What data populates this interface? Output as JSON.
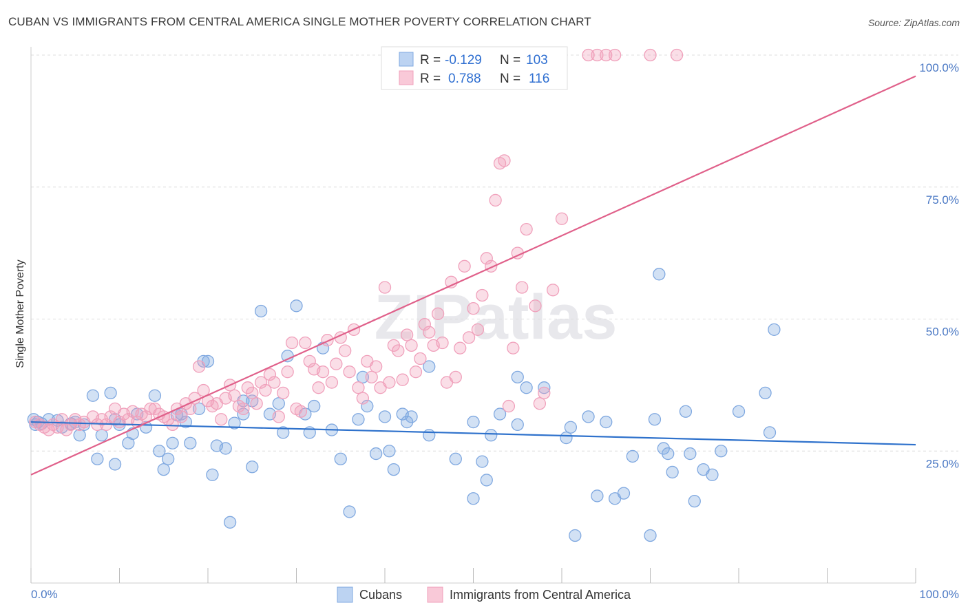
{
  "header": {
    "title": "CUBAN VS IMMIGRANTS FROM CENTRAL AMERICA SINGLE MOTHER POVERTY CORRELATION CHART",
    "source": "Source: ZipAtlas.com"
  },
  "watermark": "ZIPatlas",
  "legend": {
    "r_label": "R =",
    "n_label": "N =",
    "rows": [
      {
        "r": "-0.129",
        "n": "103"
      },
      {
        "r": "0.788",
        "n": "116"
      }
    ]
  },
  "chart_data": {
    "type": "scatter",
    "title": "CUBAN VS IMMIGRANTS FROM CENTRAL AMERICA SINGLE MOTHER POVERTY CORRELATION CHART",
    "xlabel": "",
    "ylabel": "Single Mother Poverty",
    "xlim": [
      0,
      100
    ],
    "ylim": [
      0,
      100
    ],
    "x_tick_labels": [
      "0.0%",
      "100.0%"
    ],
    "y_tick_labels": [
      "25.0%",
      "50.0%",
      "75.0%",
      "100.0%"
    ],
    "y_ticks": [
      25,
      50,
      75,
      100
    ],
    "grid": true,
    "legend_position": "top-center",
    "colors": {
      "cubans": "#7fa8e0",
      "cubans_line": "#2f72cc",
      "immigrants": "#f0a0bb",
      "immigrants_line": "#e0608a"
    },
    "series": [
      {
        "name": "Cubans",
        "r": -0.129,
        "n": 103,
        "trend": [
          [
            0,
            30.5
          ],
          [
            100,
            26.2
          ]
        ],
        "points": [
          [
            0.3,
            31
          ],
          [
            0.5,
            30
          ],
          [
            0.8,
            30.5
          ],
          [
            1.2,
            30.2
          ],
          [
            2,
            31
          ],
          [
            3,
            30.8
          ],
          [
            3.5,
            29.5
          ],
          [
            4.5,
            30.2
          ],
          [
            5,
            30.5
          ],
          [
            5.5,
            28
          ],
          [
            6,
            30
          ],
          [
            7,
            35.5
          ],
          [
            7.5,
            23.5
          ],
          [
            8,
            28
          ],
          [
            9,
            36
          ],
          [
            9.5,
            22.5
          ],
          [
            9.5,
            31
          ],
          [
            10,
            30
          ],
          [
            11,
            26.5
          ],
          [
            11.5,
            28.3
          ],
          [
            12,
            32
          ],
          [
            13,
            29.5
          ],
          [
            14,
            35.5
          ],
          [
            14.5,
            25
          ],
          [
            15,
            21.5
          ],
          [
            15.5,
            23.5
          ],
          [
            16,
            26.5
          ],
          [
            16.5,
            31.8
          ],
          [
            17,
            32
          ],
          [
            17.5,
            30.5
          ],
          [
            18,
            26.5
          ],
          [
            19,
            33
          ],
          [
            19.5,
            42
          ],
          [
            20,
            42
          ],
          [
            20.5,
            20.5
          ],
          [
            21,
            26
          ],
          [
            22,
            25.5
          ],
          [
            22.5,
            11.5
          ],
          [
            23,
            30.3
          ],
          [
            24,
            34.5
          ],
          [
            24,
            32
          ],
          [
            25,
            34.5
          ],
          [
            25,
            22
          ],
          [
            26,
            51.5
          ],
          [
            27,
            32
          ],
          [
            28,
            34
          ],
          [
            28.5,
            28.5
          ],
          [
            29,
            43
          ],
          [
            30,
            52.5
          ],
          [
            31,
            32
          ],
          [
            31.5,
            28.5
          ],
          [
            32,
            33.5
          ],
          [
            33,
            44.5
          ],
          [
            34,
            29
          ],
          [
            35,
            23.5
          ],
          [
            36,
            13.5
          ],
          [
            37,
            31
          ],
          [
            37.5,
            39
          ],
          [
            38,
            33.5
          ],
          [
            39,
            24.5
          ],
          [
            40,
            31.5
          ],
          [
            40.5,
            25
          ],
          [
            41,
            21.5
          ],
          [
            42,
            32
          ],
          [
            42.5,
            30.5
          ],
          [
            43,
            31.5
          ],
          [
            45,
            41
          ],
          [
            45,
            28
          ],
          [
            48,
            23.5
          ],
          [
            50,
            16
          ],
          [
            50,
            30.5
          ],
          [
            51,
            23
          ],
          [
            51.5,
            19.5
          ],
          [
            52,
            28
          ],
          [
            53,
            32
          ],
          [
            55,
            30
          ],
          [
            55,
            39
          ],
          [
            56,
            37
          ],
          [
            58,
            37
          ],
          [
            60.5,
            27.5
          ],
          [
            61,
            29.5
          ],
          [
            61.5,
            9
          ],
          [
            63,
            31.5
          ],
          [
            64,
            16.5
          ],
          [
            65,
            30.5
          ],
          [
            66,
            16
          ],
          [
            67,
            17
          ],
          [
            68,
            24
          ],
          [
            70,
            9
          ],
          [
            70.5,
            31
          ],
          [
            71,
            58.5
          ],
          [
            71.5,
            25.5
          ],
          [
            72,
            24.5
          ],
          [
            72.5,
            21
          ],
          [
            74,
            32.5
          ],
          [
            74.5,
            24.5
          ],
          [
            75,
            15.5
          ],
          [
            76,
            21.5
          ],
          [
            77,
            20.5
          ],
          [
            78,
            25
          ],
          [
            80,
            32.5
          ],
          [
            83,
            36
          ],
          [
            83.5,
            28.5
          ],
          [
            84,
            48
          ]
        ]
      },
      {
        "name": "Immigrants from Central America",
        "r": 0.788,
        "n": 116,
        "trend": [
          [
            0,
            20.5
          ],
          [
            100,
            96
          ]
        ],
        "points": [
          [
            0.5,
            30.5
          ],
          [
            1,
            30
          ],
          [
            1.5,
            29.5
          ],
          [
            2,
            29
          ],
          [
            2.5,
            30
          ],
          [
            3,
            29.5
          ],
          [
            3.5,
            31
          ],
          [
            4,
            29
          ],
          [
            4.5,
            30
          ],
          [
            5,
            31
          ],
          [
            5.5,
            30
          ],
          [
            6,
            30.5
          ],
          [
            7,
            31.5
          ],
          [
            7.5,
            30
          ],
          [
            8,
            31
          ],
          [
            8.5,
            30
          ],
          [
            9,
            31.5
          ],
          [
            9.5,
            33
          ],
          [
            10,
            30.5
          ],
          [
            10.5,
            32
          ],
          [
            11,
            31
          ],
          [
            11.5,
            32.5
          ],
          [
            12,
            30.5
          ],
          [
            12.5,
            32
          ],
          [
            13,
            31.5
          ],
          [
            13.5,
            33
          ],
          [
            14,
            33
          ],
          [
            14.5,
            32
          ],
          [
            15,
            31.5
          ],
          [
            15.5,
            31
          ],
          [
            16,
            30
          ],
          [
            16.5,
            33
          ],
          [
            17,
            31.5
          ],
          [
            17.5,
            34
          ],
          [
            18,
            33
          ],
          [
            18.5,
            35
          ],
          [
            19,
            41
          ],
          [
            19.5,
            36.5
          ],
          [
            20,
            34.5
          ],
          [
            20.5,
            33.5
          ],
          [
            21,
            34
          ],
          [
            21.5,
            31
          ],
          [
            22,
            35
          ],
          [
            22.5,
            37.5
          ],
          [
            23,
            35.5
          ],
          [
            23.5,
            33.5
          ],
          [
            24,
            33
          ],
          [
            24.5,
            37
          ],
          [
            25,
            36
          ],
          [
            25.5,
            34
          ],
          [
            26,
            38
          ],
          [
            26.5,
            36.5
          ],
          [
            27,
            39.5
          ],
          [
            27.5,
            38
          ],
          [
            28,
            31.5
          ],
          [
            28.5,
            36
          ],
          [
            29,
            40
          ],
          [
            29.5,
            45.5
          ],
          [
            30,
            33
          ],
          [
            30.5,
            32.5
          ],
          [
            31,
            45.5
          ],
          [
            31.5,
            42
          ],
          [
            32,
            40.5
          ],
          [
            32.5,
            37
          ],
          [
            33,
            40
          ],
          [
            33.5,
            46
          ],
          [
            34,
            38
          ],
          [
            34.5,
            41.5
          ],
          [
            35,
            46.5
          ],
          [
            35.5,
            44
          ],
          [
            36,
            40
          ],
          [
            36.5,
            48
          ],
          [
            37,
            37
          ],
          [
            37.5,
            35
          ],
          [
            38,
            42
          ],
          [
            38.5,
            39
          ],
          [
            39,
            41
          ],
          [
            39.5,
            37
          ],
          [
            40,
            56
          ],
          [
            40.5,
            38
          ],
          [
            41,
            45
          ],
          [
            41.5,
            44
          ],
          [
            42,
            38.5
          ],
          [
            42.5,
            47
          ],
          [
            43,
            45
          ],
          [
            43.5,
            40
          ],
          [
            44,
            42.5
          ],
          [
            44.5,
            49
          ],
          [
            45,
            47.5
          ],
          [
            45.5,
            45
          ],
          [
            46,
            51
          ],
          [
            46.5,
            45.5
          ],
          [
            47,
            38
          ],
          [
            47.5,
            57
          ],
          [
            48,
            39
          ],
          [
            48.5,
            44.5
          ],
          [
            49,
            60
          ],
          [
            49.5,
            46.5
          ],
          [
            50,
            52
          ],
          [
            50.5,
            48
          ],
          [
            51,
            54.5
          ],
          [
            51.5,
            61.5
          ],
          [
            52,
            60
          ],
          [
            52.5,
            72.5
          ],
          [
            53,
            79.5
          ],
          [
            53.5,
            80
          ],
          [
            54,
            33.5
          ],
          [
            54.5,
            44.5
          ],
          [
            55,
            62.5
          ],
          [
            55.5,
            56
          ],
          [
            56,
            67
          ],
          [
            57,
            52.5
          ],
          [
            57.5,
            34
          ],
          [
            58,
            36
          ],
          [
            59,
            55.5
          ],
          [
            60,
            69
          ],
          [
            63,
            100
          ],
          [
            64,
            100
          ],
          [
            65,
            100
          ],
          [
            66,
            100
          ],
          [
            70,
            100
          ],
          [
            73,
            100
          ]
        ]
      }
    ]
  },
  "bottom_legend": [
    {
      "label": "Cubans"
    },
    {
      "label": "Immigrants from Central America"
    }
  ]
}
